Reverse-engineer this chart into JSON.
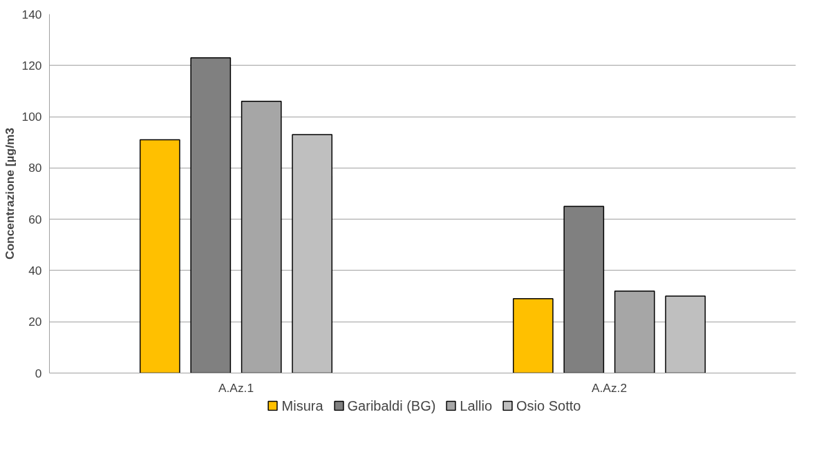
{
  "chart_data": {
    "type": "bar",
    "ylabel": "Concentrazione [µg/m3",
    "categories": [
      "A.Az.1",
      "A.Az.2"
    ],
    "series": [
      {
        "name": "Misura",
        "color": "#ffc000",
        "values": [
          91,
          29
        ]
      },
      {
        "name": "Garibaldi (BG)",
        "color": "#808080",
        "values": [
          123,
          65
        ]
      },
      {
        "name": "Lallio",
        "color": "#a6a6a6",
        "values": [
          106,
          32
        ]
      },
      {
        "name": "Osio Sotto",
        "color": "#bfbfbf",
        "values": [
          93,
          30
        ]
      }
    ],
    "ylim": [
      0,
      140
    ],
    "yticks": [
      0,
      20,
      40,
      60,
      80,
      100,
      120,
      140
    ],
    "grid": "y",
    "legend": "bottom"
  }
}
